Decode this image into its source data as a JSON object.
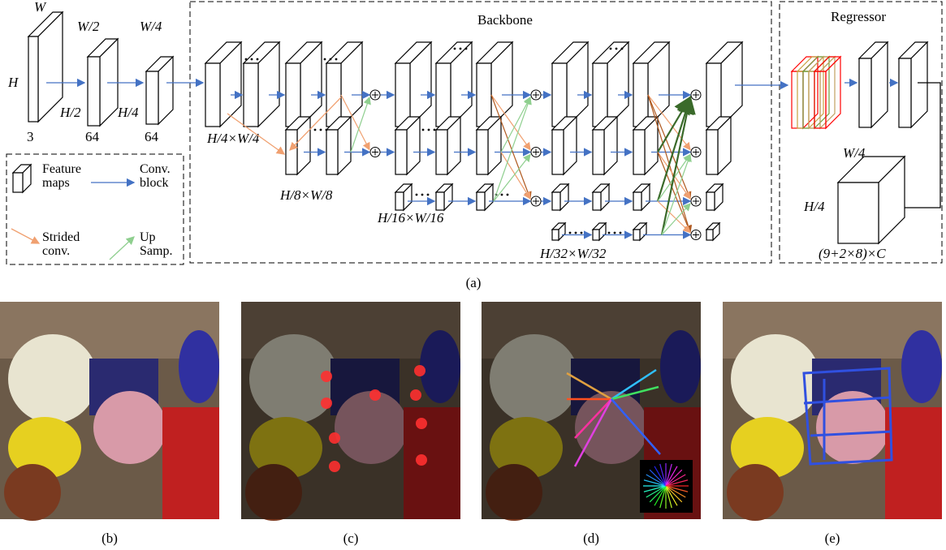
{
  "figure": {
    "caption": "(a)",
    "input": {
      "width_labels": [
        "W",
        "W/2",
        "W/4"
      ],
      "height_labels": [
        "H",
        "H/2",
        "H/4"
      ],
      "channels": [
        "3",
        "64",
        "64"
      ]
    },
    "legend": {
      "items": [
        "Feature maps",
        "Conv. block",
        "Strided conv.",
        "Up Samp."
      ]
    },
    "backbone": {
      "title": "Backbone",
      "scales": [
        "H/4×W/4",
        "H/8×W/8",
        "H/16×W/16",
        "H/32×W/32"
      ]
    },
    "regressor": {
      "title": "Regressor",
      "output_width": "W/4",
      "output_height": "H/4",
      "output_channels": "(9+2×8)×C"
    }
  },
  "panels": [
    {
      "label": "(b)"
    },
    {
      "label": "(c)"
    },
    {
      "label": "(d)"
    },
    {
      "label": "(e)"
    }
  ]
}
